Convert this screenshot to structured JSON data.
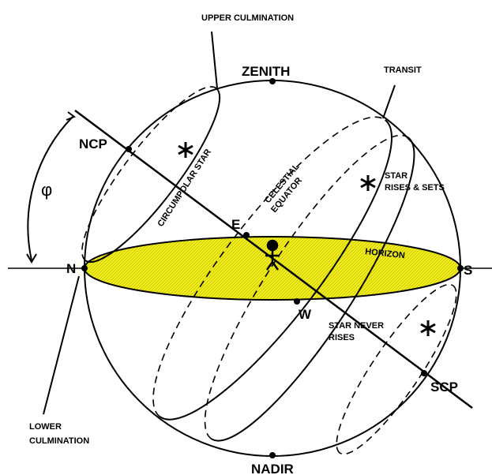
{
  "labels": {
    "upper_culmination": "UPPER CULMINATION",
    "zenith": "ZENITH",
    "transit": "TRANSIT",
    "ncp": "NCP",
    "circumpolar_star": "CIRCUMPOLAR STAR",
    "celestial_equator": [
      "CELESTIAL",
      "EQUATOR"
    ],
    "star_rises_sets": [
      "STAR",
      "RISES & SETS"
    ],
    "east": "E",
    "horizon": "HORIZON",
    "north": "N",
    "south": "S",
    "west": "W",
    "star_never_rises": [
      "STAR NEVER",
      "RISES"
    ],
    "scp": "SCP",
    "lower_culmination": [
      "LOWER",
      "CULMINATION"
    ],
    "nadir": "NADIR",
    "latitude": "φ"
  }
}
